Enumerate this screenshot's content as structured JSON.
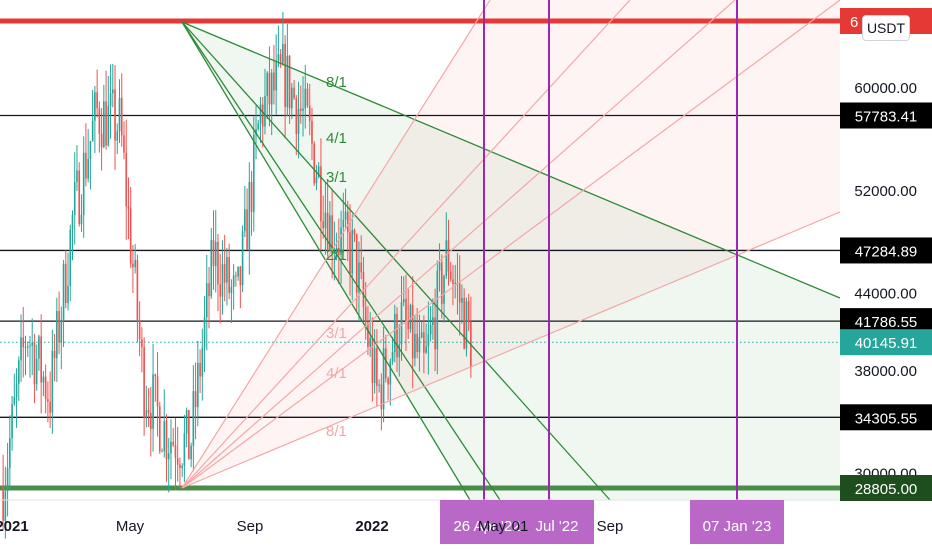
{
  "toolbar": {
    "currency_label": "USDT"
  },
  "colors": {
    "candle_up": "#26a69a",
    "candle_down": "#ef5350",
    "fan_green": "#2e8b37",
    "fan_pink": "#f4a7a7",
    "vertical_line": "#9c27b0",
    "resistance": "#e53935",
    "support": "#4a8c4a",
    "current_price": "#26a69a"
  },
  "chart_data": {
    "type": "candlestick",
    "price_axis": {
      "ticks": [
        60000,
        52000,
        44000,
        38000,
        30000
      ],
      "tick_labels": [
        "60000.00",
        "52000.00",
        "44000.00",
        "38000.00",
        "30000.00"
      ]
    },
    "time_axis": {
      "labels": [
        "2021",
        "May",
        "Sep",
        "2022",
        "Sep"
      ],
      "bold": [
        true,
        false,
        false,
        true,
        false
      ]
    },
    "horizontal_levels": [
      {
        "value": 57783.41,
        "label": "57783.41",
        "style": "black"
      },
      {
        "value": 47284.89,
        "label": "47284.89",
        "style": "black"
      },
      {
        "value": 41786.55,
        "label": "41786.55",
        "style": "black"
      },
      {
        "value": 34305.55,
        "label": "34305.55",
        "style": "black"
      },
      {
        "value": 28805.0,
        "label": "28805.00",
        "style": "support"
      },
      {
        "value": 68900,
        "label": "6",
        "style": "resistance",
        "note": "partially hidden label"
      }
    ],
    "current_price": {
      "value": 40145.91,
      "label": "40145.91"
    },
    "gann_fan_down": {
      "labels": [
        "8/1",
        "4/1",
        "3/1",
        "2/1"
      ]
    },
    "gann_fan_up": {
      "labels": [
        "3/1",
        "4/1",
        "8/1"
      ]
    },
    "vertical_markers": [
      {
        "label": "26 Apr '22"
      },
      {
        "label": "Jul '22"
      },
      {
        "label": "07 Jan '23"
      }
    ],
    "hidden_axis_text": [
      "May",
      "01"
    ],
    "series": [
      {
        "t": 0,
        "close": 29000
      },
      {
        "t": 0.05,
        "close": 41000
      },
      {
        "t": 0.1,
        "close": 36000
      },
      {
        "t": 0.15,
        "close": 50000
      },
      {
        "t": 0.2,
        "close": 58000
      },
      {
        "t": 0.25,
        "close": 57000
      },
      {
        "t": 0.3,
        "close": 37000
      },
      {
        "t": 0.35,
        "close": 33000
      },
      {
        "t": 0.4,
        "close": 32000
      },
      {
        "t": 0.45,
        "close": 47000
      },
      {
        "t": 0.5,
        "close": 43000
      },
      {
        "t": 0.55,
        "close": 58000
      },
      {
        "t": 0.6,
        "close": 61000
      },
      {
        "t": 0.65,
        "close": 57000
      },
      {
        "t": 0.7,
        "close": 49000
      },
      {
        "t": 0.75,
        "close": 47000
      },
      {
        "t": 0.8,
        "close": 36000
      },
      {
        "t": 0.85,
        "close": 42000
      },
      {
        "t": 0.9,
        "close": 38000
      },
      {
        "t": 0.95,
        "close": 47000
      },
      {
        "t": 1.0,
        "close": 40145.91
      }
    ]
  }
}
